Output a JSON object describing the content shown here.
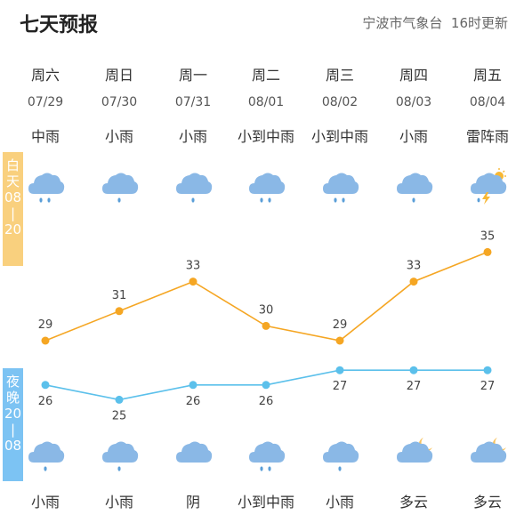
{
  "header": {
    "title": "七天预报",
    "source": "宁波市气象台",
    "update": "16时更新"
  },
  "labels": {
    "day": [
      "白",
      "天",
      "08",
      "|",
      "20"
    ],
    "night": [
      "夜",
      "晚",
      "20",
      "|",
      "08"
    ]
  },
  "days": [
    {
      "weekday": "周六",
      "date": "07/29",
      "day_weather": "中雨",
      "day_icon": "moderate-rain-icon",
      "night_weather": "小雨",
      "night_icon": "light-rain-icon"
    },
    {
      "weekday": "周日",
      "date": "07/30",
      "day_weather": "小雨",
      "day_icon": "light-rain-icon",
      "night_weather": "小雨",
      "night_icon": "light-rain-icon"
    },
    {
      "weekday": "周一",
      "date": "07/31",
      "day_weather": "小雨",
      "day_icon": "light-rain-icon",
      "night_weather": "阴",
      "night_icon": "overcast-icon"
    },
    {
      "weekday": "周二",
      "date": "08/01",
      "day_weather": "小到中雨",
      "day_icon": "moderate-rain-icon",
      "night_weather": "小到中雨",
      "night_icon": "moderate-rain-icon"
    },
    {
      "weekday": "周三",
      "date": "08/02",
      "day_weather": "小到中雨",
      "day_icon": "moderate-rain-icon",
      "night_weather": "小雨",
      "night_icon": "light-rain-icon"
    },
    {
      "weekday": "周四",
      "date": "08/03",
      "day_weather": "小雨",
      "day_icon": "light-rain-icon",
      "night_weather": "多云",
      "night_icon": "cloudy-night-icon"
    },
    {
      "weekday": "周五",
      "date": "08/04",
      "day_weather": "雷阵雨",
      "day_icon": "thunderstorm-icon",
      "night_weather": "多云",
      "night_icon": "cloudy-night-icon"
    }
  ],
  "colors": {
    "high": "#f5a623",
    "low": "#5bc0eb",
    "cloud": "#8ab8e6",
    "rain": "#5b9fd8"
  },
  "chart_data": {
    "type": "line",
    "categories": [
      "07/29",
      "07/30",
      "07/31",
      "08/01",
      "08/02",
      "08/03",
      "08/04"
    ],
    "series": [
      {
        "values": [
          29,
          31,
          33,
          30,
          29,
          33,
          35
        ]
      },
      {
        "values": [
          26,
          25,
          26,
          26,
          27,
          27,
          27
        ]
      }
    ]
  }
}
